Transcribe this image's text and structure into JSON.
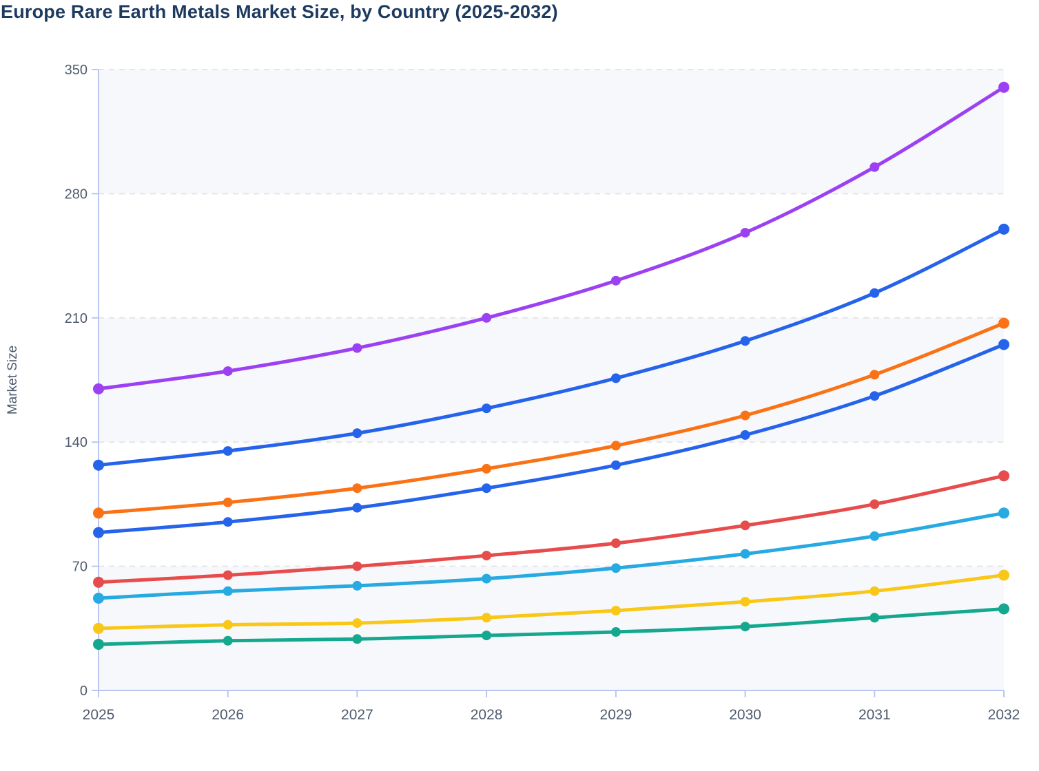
{
  "chart_data": {
    "type": "line",
    "title": "Europe Rare Earth Metals Market Size, by Country (2025-2032)",
    "ylabel": "Market Size",
    "xlabel": "",
    "categories": [
      "2025",
      "2026",
      "2027",
      "2028",
      "2029",
      "2030",
      "2031",
      "2032"
    ],
    "y_ticks": [
      0,
      70,
      140,
      210,
      280,
      350
    ],
    "ylim": [
      0,
      350
    ],
    "grid": "horizontal-dashed",
    "legend": "none",
    "marker": "filled-circle",
    "series": [
      {
        "name": "series-1-purple",
        "color": "#9c41f2",
        "values": [
          170,
          180,
          193,
          210,
          231,
          258,
          295,
          340
        ]
      },
      {
        "name": "series-2-blue",
        "color": "#2563eb",
        "values": [
          127,
          135,
          145,
          159,
          176,
          197,
          224,
          260
        ]
      },
      {
        "name": "series-3-orange",
        "color": "#f97316",
        "values": [
          100,
          106,
          114,
          125,
          138,
          155,
          178,
          207
        ]
      },
      {
        "name": "series-4-blue",
        "color": "#2563eb",
        "values": [
          89,
          95,
          103,
          114,
          127,
          144,
          166,
          195
        ]
      },
      {
        "name": "series-5-red",
        "color": "#e74c4c",
        "values": [
          61,
          65,
          70,
          76,
          83,
          93,
          105,
          121
        ]
      },
      {
        "name": "series-6-sky",
        "color": "#27a9e1",
        "values": [
          52,
          56,
          59,
          63,
          69,
          77,
          87,
          100
        ]
      },
      {
        "name": "series-7-yellow",
        "color": "#f9c716",
        "values": [
          35,
          37,
          38,
          41,
          45,
          50,
          56,
          65
        ]
      },
      {
        "name": "series-8-teal",
        "color": "#14a88f",
        "values": [
          26,
          28,
          29,
          31,
          33,
          36,
          41,
          46
        ]
      }
    ],
    "style": {
      "title_color": "#1d3a5f",
      "label_color": "#4f5b6e",
      "axis_title_color": "#4c5b6e",
      "axis_color": "#b9c6f2",
      "grid_color": "#e2e5ea",
      "band_fill": "#f7f8fb",
      "background": "#ffffff",
      "shaded_bands": [
        [
          280,
          350
        ],
        [
          140,
          210
        ],
        [
          0,
          70
        ]
      ]
    }
  }
}
